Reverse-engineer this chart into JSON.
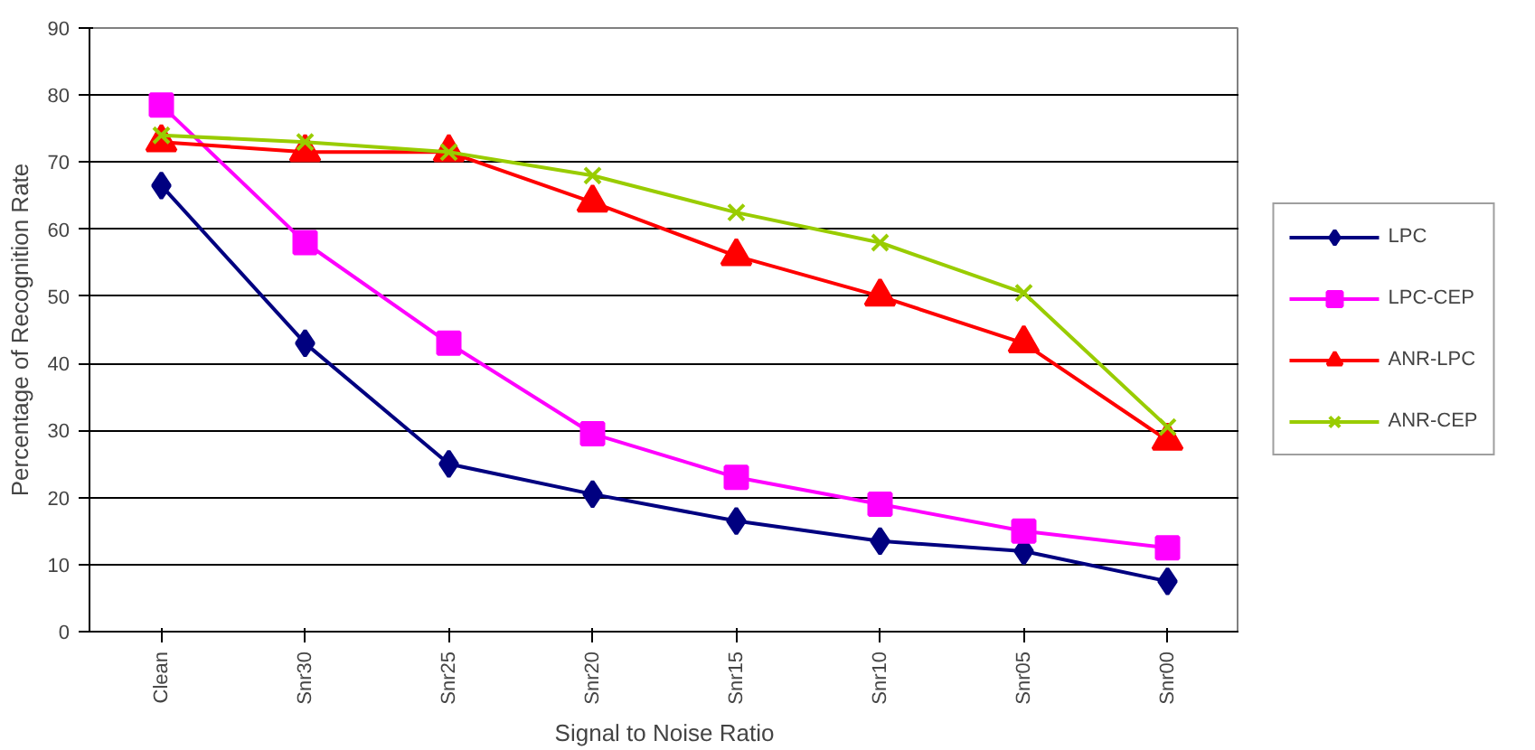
{
  "chart_data": {
    "type": "line",
    "xlabel": "Signal to Noise Ratio",
    "ylabel": "Percentage of Recognition Rate",
    "categories": [
      "Clean",
      "Snr30",
      "Snr25",
      "Snr20",
      "Snr15",
      "Snr10",
      "Snr05",
      "Snr00"
    ],
    "ylim": [
      0,
      90
    ],
    "yticks": [
      0,
      10,
      20,
      30,
      40,
      50,
      60,
      70,
      80,
      90
    ],
    "grid": "y",
    "legend": "right",
    "line_style": "solid",
    "series": [
      {
        "name": "LPC",
        "color": "#000080",
        "marker": "diamond",
        "values": [
          66.5,
          43,
          25,
          20.5,
          16.5,
          13.5,
          12,
          7.5
        ]
      },
      {
        "name": "LPC-CEP",
        "color": "#ff00ff",
        "marker": "square",
        "values": [
          78.5,
          58,
          43,
          29.5,
          23,
          19,
          15,
          12.5
        ]
      },
      {
        "name": "ANR-LPC",
        "color": "#ff0000",
        "marker": "triangle",
        "values": [
          73,
          71.5,
          71.5,
          64,
          56,
          50,
          43,
          28.5
        ]
      },
      {
        "name": "ANR-CEP",
        "color": "#99cc00",
        "marker": "cross",
        "values": [
          74,
          73,
          71.5,
          68,
          62.5,
          58,
          50.5,
          30.5
        ]
      }
    ]
  }
}
